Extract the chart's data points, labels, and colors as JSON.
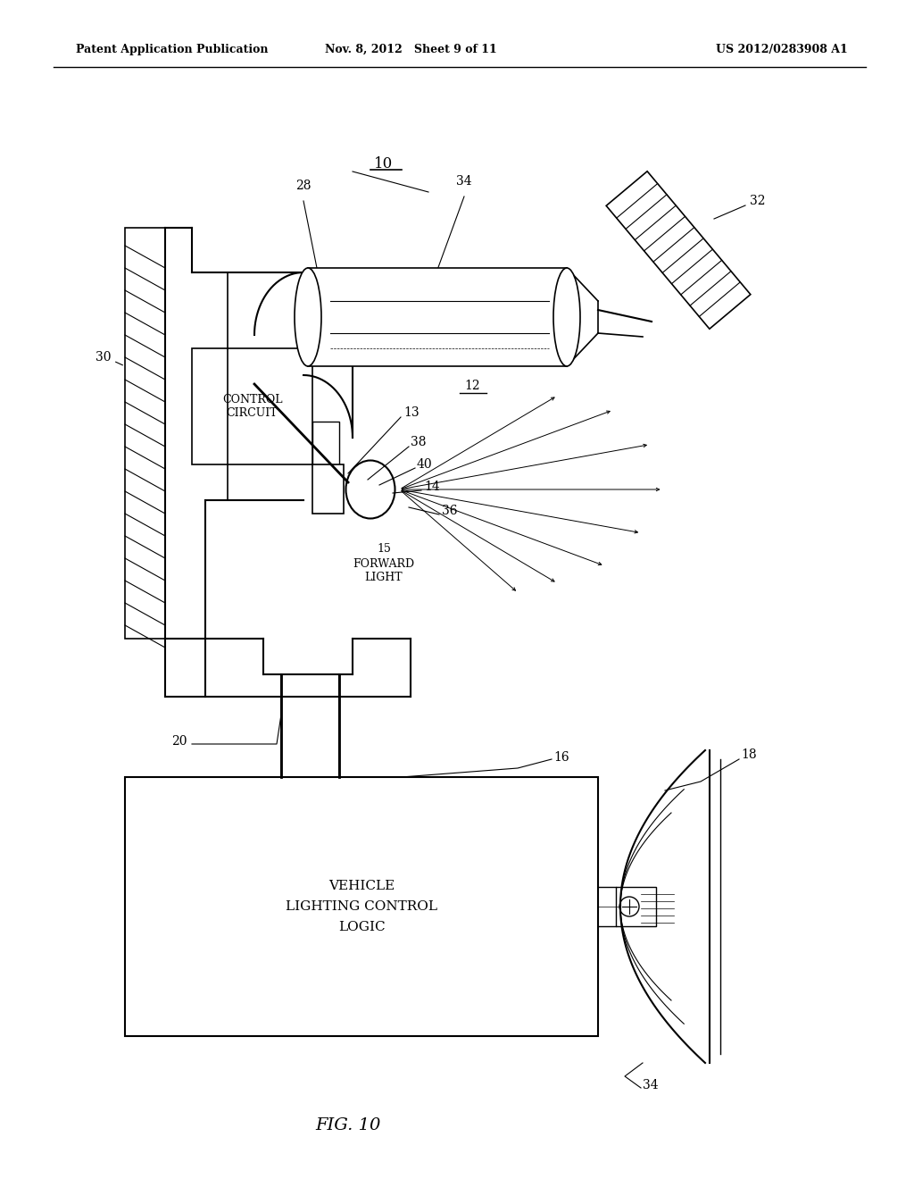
{
  "title": "FIG. 10",
  "header_left": "Patent Application Publication",
  "header_center": "Nov. 8, 2012   Sheet 9 of 11",
  "header_right": "US 2012/0283908 A1",
  "bg_color": "#ffffff",
  "line_color": "#000000",
  "label_10": "10",
  "label_28": "28",
  "label_30": "30",
  "label_34a": "34",
  "label_32": "32",
  "label_13": "13",
  "label_12": "12",
  "label_38": "38",
  "label_40": "40",
  "label_14": "14",
  "label_36": "36",
  "label_15": "15",
  "label_forward": "FORWARD\nLIGHT",
  "label_control": "CONTROL\nCIRCUIT",
  "label_20": "20",
  "label_16": "16",
  "label_vehicle": "VEHICLE\nLIGHTING CONTROL\nLOGIC",
  "label_18": "18",
  "label_34b": "34"
}
